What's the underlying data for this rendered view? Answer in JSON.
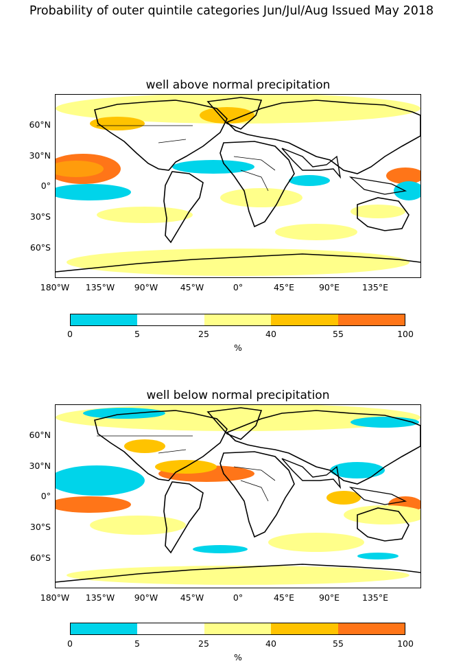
{
  "figure_title": "Probability of outer quintile categories Jun/Jul/Aug Issued May 2018",
  "panels": [
    {
      "title": "well above normal precipitation"
    },
    {
      "title": "well below normal precipitation"
    }
  ],
  "lat_ticks": [
    "60°N",
    "30°N",
    "0°",
    "30°S",
    "60°S"
  ],
  "lon_ticks": [
    "180°W",
    "135°W",
    "90°W",
    "45°W",
    "0°",
    "45°E",
    "90°E",
    "135°E"
  ],
  "colorbar": {
    "tick_labels": [
      "0",
      "5",
      "25",
      "40",
      "55",
      "100"
    ],
    "unit": "%",
    "colors": [
      "#00d4ea",
      "#ffffff",
      "#ffff8a",
      "#ffc300",
      "#ff7518"
    ]
  }
}
